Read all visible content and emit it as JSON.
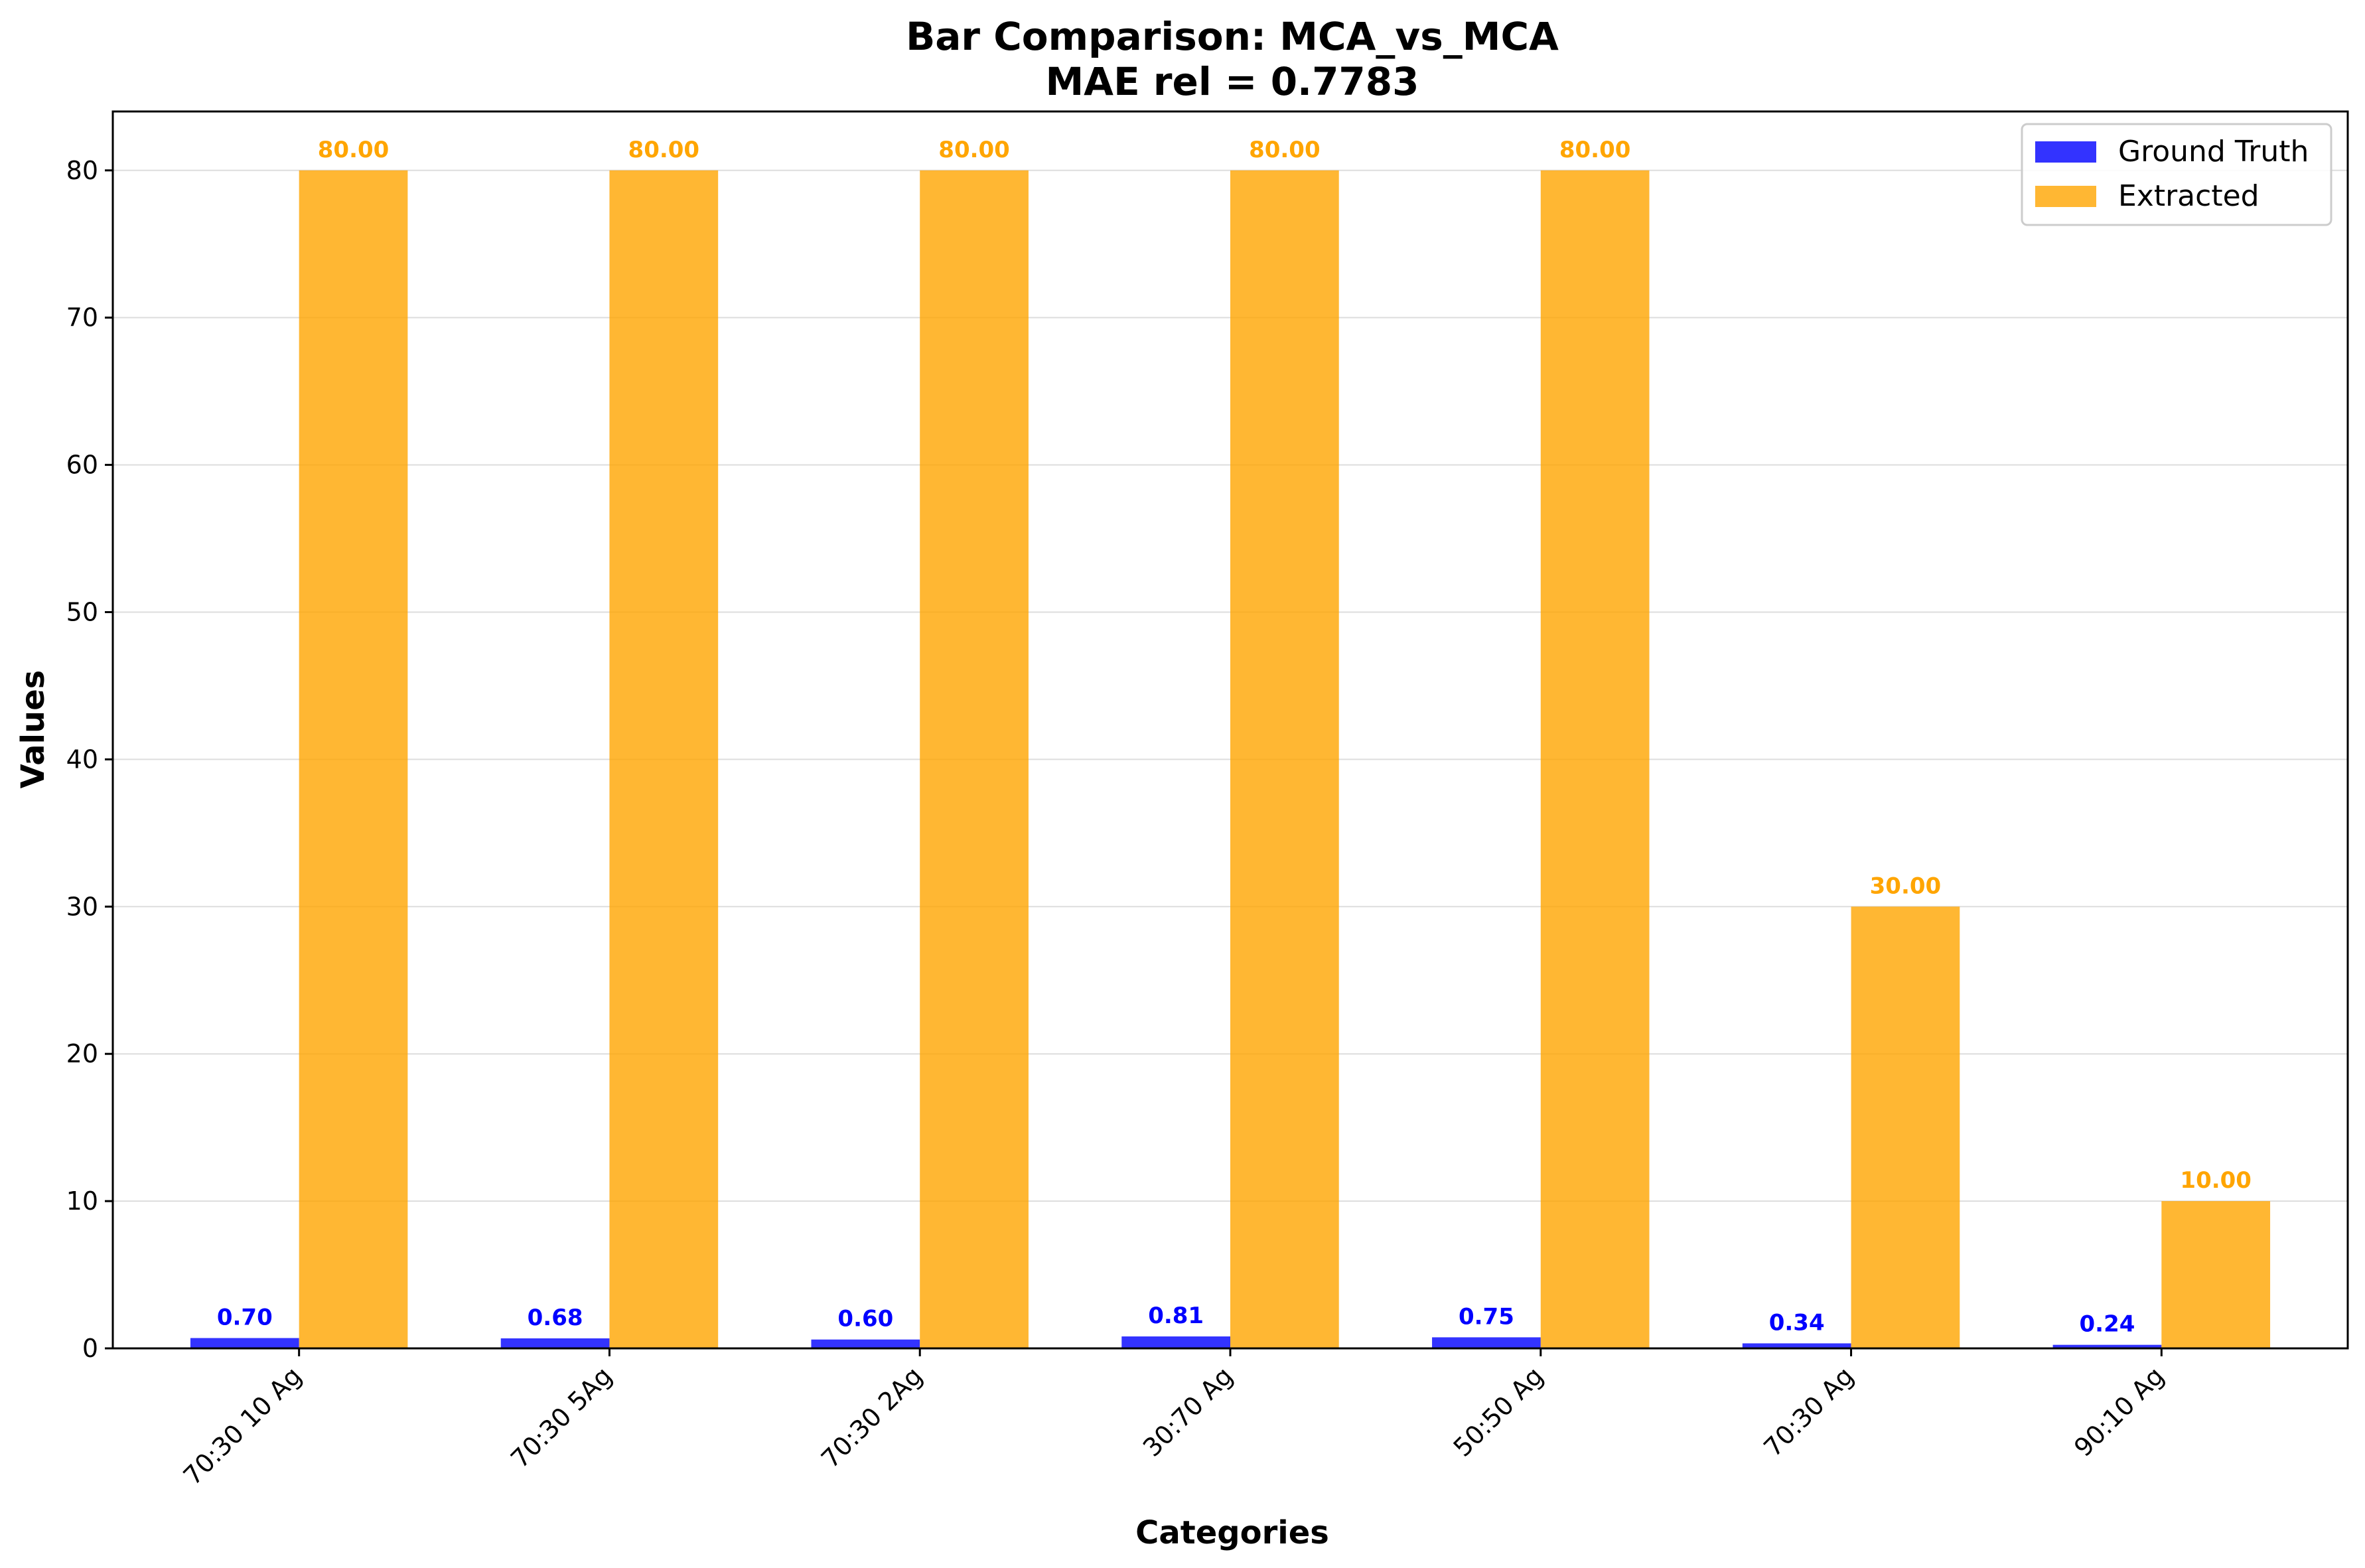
{
  "chart_data": {
    "type": "bar",
    "title": "Bar Comparison: MCA_vs_MCA",
    "subtitle": "MAE rel = 0.7783",
    "xlabel": "Categories",
    "ylabel": "Values",
    "ylim": [
      0,
      84
    ],
    "yticks": [
      0,
      10,
      20,
      30,
      40,
      50,
      60,
      70,
      80
    ],
    "grid": true,
    "legend_position": "top-right",
    "categories": [
      "70:30 10 Ag",
      "70:30 5Ag",
      "70:30 2Ag",
      "30:70 Ag",
      "50:50 Ag",
      "70:30 Ag",
      "90:10 Ag"
    ],
    "series": [
      {
        "name": "Ground Truth",
        "color": "#0000ff",
        "values": [
          0.7,
          0.68,
          0.6,
          0.81,
          0.75,
          0.34,
          0.24
        ],
        "labels": [
          "0.70",
          "0.68",
          "0.60",
          "0.81",
          "0.75",
          "0.34",
          "0.24"
        ]
      },
      {
        "name": "Extracted",
        "color": "#ffa500",
        "values": [
          80,
          80,
          80,
          80,
          80,
          30,
          10
        ],
        "labels": [
          "80.00",
          "80.00",
          "80.00",
          "80.00",
          "80.00",
          "30.00",
          "10.00"
        ]
      }
    ]
  }
}
